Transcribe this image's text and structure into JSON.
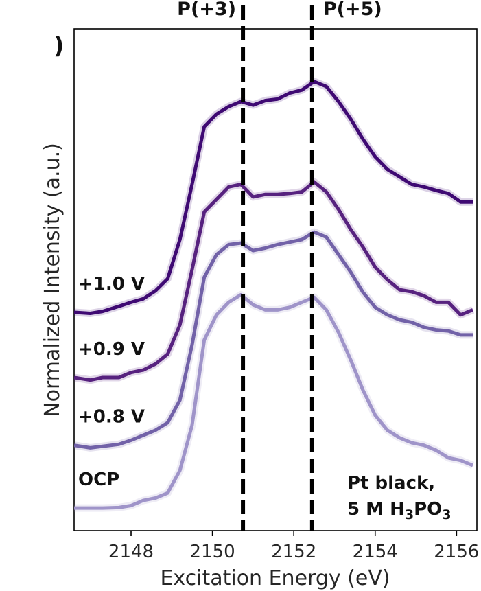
{
  "chart_data": {
    "type": "line",
    "panel_label": ")",
    "xlabel": "Excitation Energy (eV)",
    "ylabel": "Normalized Intensity (a.u.)",
    "xlim": [
      2146.6,
      2156.5
    ],
    "ylim": [
      0,
      1
    ],
    "xticks": [
      2148,
      2150,
      2152,
      2154,
      2156
    ],
    "grid": false,
    "annotation_lines": [
      "Pt black,",
      "5 M H",
      "3",
      "PO",
      "3"
    ],
    "reference_lines": [
      {
        "label": "P(+3)",
        "x": 2150.75
      },
      {
        "label": "P(+5)",
        "x": 2152.45
      }
    ],
    "series": [
      {
        "name": "+1.0 V",
        "color": "#3f0a73",
        "x": [
          2146.6,
          2147.0,
          2147.3,
          2147.7,
          2148.0,
          2148.3,
          2148.6,
          2148.9,
          2149.2,
          2149.5,
          2149.8,
          2150.1,
          2150.4,
          2150.7,
          2151.0,
          2151.3,
          2151.6,
          2151.9,
          2152.2,
          2152.5,
          2152.8,
          2153.1,
          2153.4,
          2153.7,
          2154.0,
          2154.3,
          2154.6,
          2154.9,
          2155.2,
          2155.5,
          2155.8,
          2156.1,
          2156.4
        ],
        "y": [
          0.435,
          0.433,
          0.437,
          0.447,
          0.455,
          0.462,
          0.478,
          0.502,
          0.58,
          0.69,
          0.805,
          0.83,
          0.845,
          0.855,
          0.848,
          0.857,
          0.86,
          0.872,
          0.878,
          0.895,
          0.885,
          0.855,
          0.82,
          0.78,
          0.745,
          0.72,
          0.705,
          0.69,
          0.685,
          0.678,
          0.672,
          0.655,
          0.655
        ]
      },
      {
        "name": "+0.9 V",
        "color": "#57227f",
        "x": [
          2146.6,
          2147.0,
          2147.3,
          2147.7,
          2148.0,
          2148.3,
          2148.6,
          2148.9,
          2149.2,
          2149.5,
          2149.8,
          2150.1,
          2150.4,
          2150.7,
          2151.0,
          2151.3,
          2151.6,
          2151.9,
          2152.2,
          2152.5,
          2152.8,
          2153.1,
          2153.4,
          2153.7,
          2154.0,
          2154.3,
          2154.6,
          2154.9,
          2155.2,
          2155.5,
          2155.8,
          2156.1,
          2156.4
        ],
        "y": [
          0.305,
          0.3,
          0.305,
          0.305,
          0.315,
          0.32,
          0.332,
          0.352,
          0.41,
          0.52,
          0.635,
          0.66,
          0.685,
          0.69,
          0.665,
          0.67,
          0.67,
          0.672,
          0.675,
          0.695,
          0.675,
          0.64,
          0.6,
          0.565,
          0.525,
          0.5,
          0.48,
          0.476,
          0.468,
          0.455,
          0.455,
          0.43,
          0.44
        ]
      },
      {
        "name": "+0.8 V",
        "color": "#7262a8",
        "x": [
          2146.6,
          2147.0,
          2147.3,
          2147.7,
          2148.0,
          2148.3,
          2148.6,
          2148.9,
          2149.2,
          2149.5,
          2149.8,
          2150.1,
          2150.4,
          2150.7,
          2151.0,
          2151.3,
          2151.6,
          2151.9,
          2152.2,
          2152.5,
          2152.8,
          2153.1,
          2153.4,
          2153.7,
          2154.0,
          2154.3,
          2154.6,
          2154.9,
          2155.2,
          2155.5,
          2155.8,
          2156.1,
          2156.4
        ],
        "y": [
          0.17,
          0.165,
          0.168,
          0.172,
          0.18,
          0.19,
          0.2,
          0.215,
          0.26,
          0.37,
          0.505,
          0.55,
          0.57,
          0.573,
          0.558,
          0.563,
          0.57,
          0.575,
          0.58,
          0.595,
          0.585,
          0.55,
          0.515,
          0.475,
          0.445,
          0.43,
          0.42,
          0.415,
          0.405,
          0.4,
          0.398,
          0.39,
          0.39
        ]
      },
      {
        "name": "OCP",
        "color": "#9f94c9",
        "x": [
          2146.6,
          2147.0,
          2147.3,
          2147.7,
          2148.0,
          2148.3,
          2148.6,
          2148.9,
          2149.2,
          2149.5,
          2149.8,
          2150.1,
          2150.4,
          2150.7,
          2151.0,
          2151.3,
          2151.6,
          2151.9,
          2152.2,
          2152.5,
          2152.8,
          2153.1,
          2153.4,
          2153.7,
          2154.0,
          2154.3,
          2154.6,
          2154.9,
          2155.2,
          2155.5,
          2155.8,
          2156.1,
          2156.4
        ],
        "y": [
          0.045,
          0.045,
          0.045,
          0.046,
          0.05,
          0.06,
          0.065,
          0.075,
          0.12,
          0.21,
          0.38,
          0.43,
          0.455,
          0.47,
          0.45,
          0.44,
          0.44,
          0.445,
          0.455,
          0.465,
          0.44,
          0.395,
          0.34,
          0.28,
          0.23,
          0.2,
          0.185,
          0.175,
          0.17,
          0.16,
          0.145,
          0.14,
          0.13
        ]
      }
    ]
  }
}
